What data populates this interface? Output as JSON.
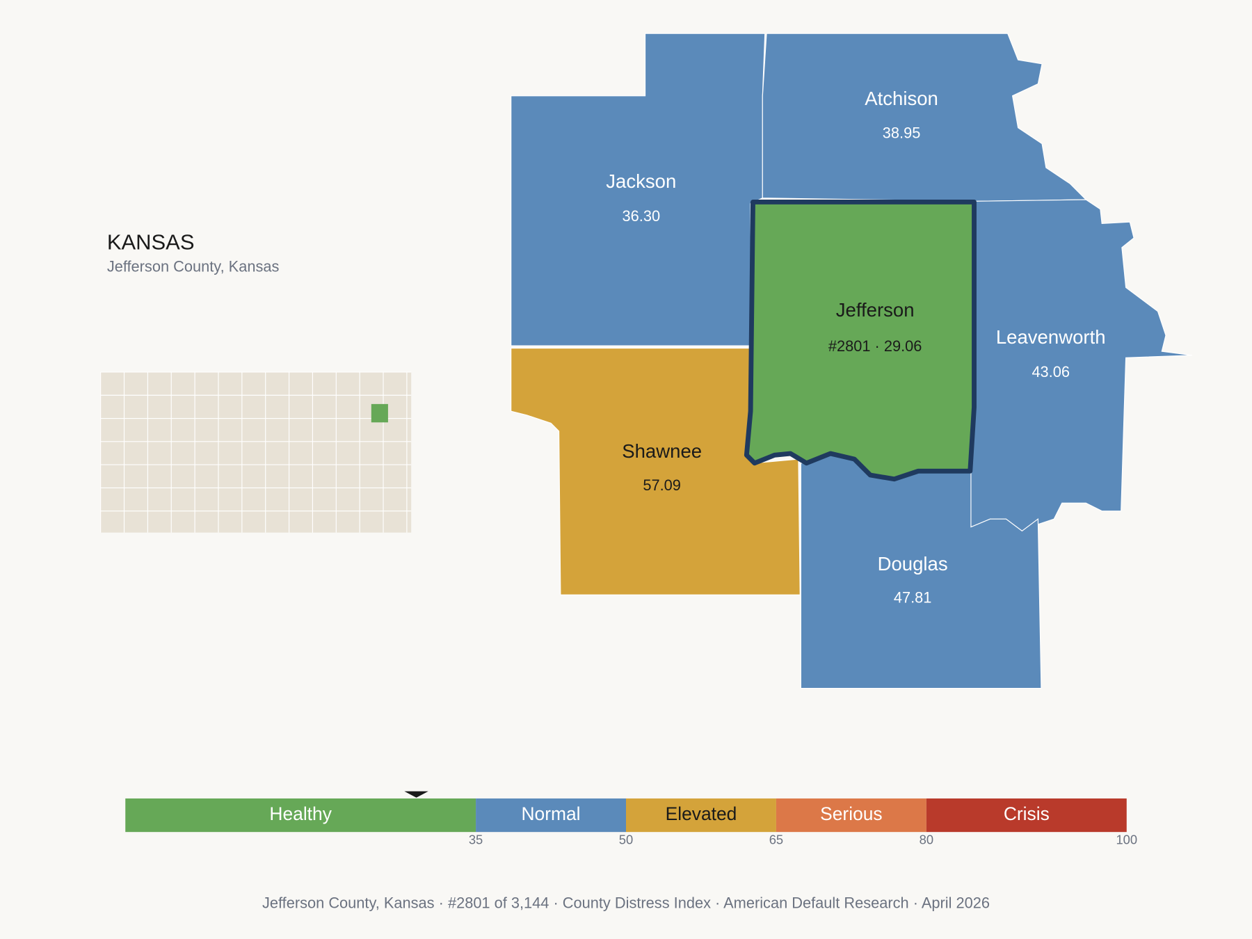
{
  "header": {
    "title": "KANSAS",
    "subtitle": "Jefferson County, Kansas"
  },
  "counties": [
    {
      "name": "Jackson",
      "score": 36.3,
      "score_label": "36.30"
    },
    {
      "name": "Atchison",
      "score": 38.95,
      "score_label": "38.95"
    },
    {
      "name": "Jefferson",
      "score": 29.06,
      "score_label": "#2801 · 29.06",
      "selected": true
    },
    {
      "name": "Leavenworth",
      "score": 43.06,
      "score_label": "43.06"
    },
    {
      "name": "Shawnee",
      "score": 57.09,
      "score_label": "57.09"
    },
    {
      "name": "Douglas",
      "score": 47.81,
      "score_label": "47.81"
    }
  ],
  "scale": {
    "min": 0,
    "max": 100,
    "marker": 29.06,
    "bands": [
      {
        "label": "Healthy",
        "end": 35,
        "color": "#66a857"
      },
      {
        "label": "Normal",
        "end": 50,
        "color": "#5b8aba"
      },
      {
        "label": "Elevated",
        "end": 65,
        "color": "#d4a33a"
      },
      {
        "label": "Serious",
        "end": 80,
        "color": "#dc7848"
      },
      {
        "label": "Crisis",
        "end": 100,
        "color": "#b93a2b"
      }
    ],
    "ticks": [
      35,
      50,
      65,
      80,
      100
    ]
  },
  "footer": "Jefferson County, Kansas  ·  #2801 of 3,144  ·  County Distress Index  ·  American Default Research  ·  April 2026"
}
